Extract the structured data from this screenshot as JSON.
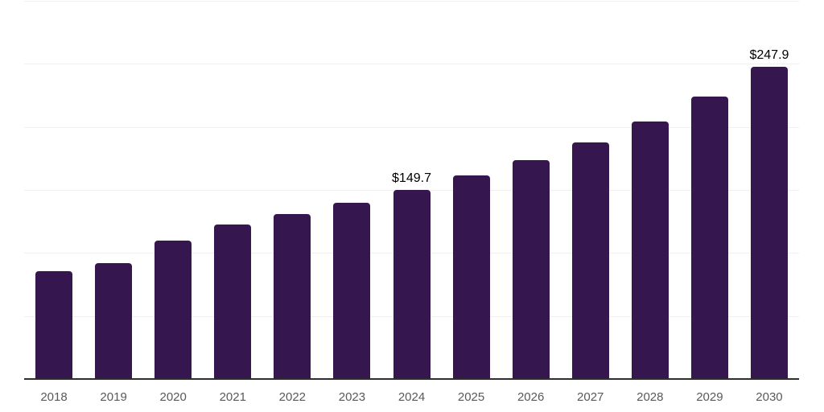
{
  "chart_data": {
    "type": "bar",
    "title": "",
    "xlabel": "",
    "ylabel": "",
    "categories": [
      "2018",
      "2019",
      "2020",
      "2021",
      "2022",
      "2023",
      "2024",
      "2025",
      "2026",
      "2027",
      "2028",
      "2029",
      "2030"
    ],
    "values": [
      85.4,
      91.7,
      109.5,
      122.3,
      130.6,
      139.5,
      149.7,
      161.2,
      173.3,
      187.9,
      204.5,
      224.2,
      247.9
    ],
    "data_labels": [
      "",
      "",
      "",
      "",
      "",
      "",
      "$149.7",
      "",
      "",
      "",
      "",
      "",
      "$247.9"
    ],
    "ylim": [
      0,
      300
    ],
    "gridline_step": 50,
    "grid": true,
    "legend": "none",
    "y_tick_labels_visible": false,
    "colors": {
      "bar": "#36164F",
      "axis_line": "#2e2e2e",
      "gridline": "#f0f0f0",
      "tick_label": "#595959",
      "data_label": "#000000",
      "background": "#ffffff"
    }
  }
}
